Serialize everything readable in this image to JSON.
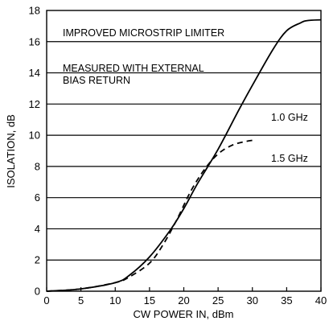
{
  "chart_data": {
    "type": "line",
    "xlabel": "CW POWER IN, dBm",
    "ylabel": "ISOLATION, dB",
    "xlim": [
      0,
      40
    ],
    "ylim": [
      0,
      18
    ],
    "xticks": [
      0,
      5,
      10,
      15,
      20,
      25,
      30,
      35,
      40
    ],
    "yticks": [
      0,
      2,
      4,
      6,
      8,
      10,
      12,
      14,
      16,
      18
    ],
    "grid": "horizontal",
    "annotations": [
      "IMPROVED MICROSTRIP LIMITER",
      "MEASURED WITH EXTERNAL",
      "BIAS RETURN"
    ],
    "series": [
      {
        "name": "1.0 GHz",
        "style": "solid",
        "x": [
          0,
          5,
          10,
          12,
          15,
          18,
          20,
          22,
          25,
          28,
          30,
          33,
          35,
          37,
          38,
          40
        ],
        "y": [
          0,
          0.15,
          0.55,
          1.0,
          2.2,
          3.9,
          5.3,
          6.9,
          9.1,
          11.6,
          13.2,
          15.5,
          16.7,
          17.2,
          17.35,
          17.4
        ]
      },
      {
        "name": "1.5 GHz",
        "style": "dashed",
        "x": [
          0,
          5,
          10,
          12,
          15,
          17,
          19,
          21,
          23,
          25,
          27,
          29,
          30.5
        ],
        "y": [
          0,
          0.15,
          0.55,
          0.9,
          1.8,
          3.0,
          4.6,
          6.4,
          7.8,
          8.8,
          9.35,
          9.6,
          9.7
        ]
      }
    ]
  }
}
